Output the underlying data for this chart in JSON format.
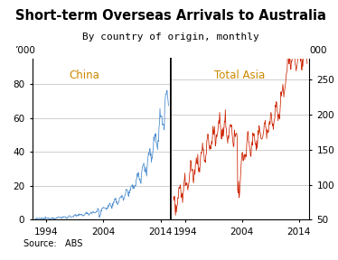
{
  "title": "Short-term Overseas Arrivals to Australia",
  "subtitle": "By country of origin, monthly",
  "source": "Source:   ABS",
  "left_label": "China",
  "right_label": "Total Asia",
  "left_ylabel": "’000",
  "right_ylabel": "’000",
  "left_ylim": [
    0,
    95
  ],
  "right_ylim": [
    50,
    280
  ],
  "left_yticks": [
    0,
    20,
    40,
    60,
    80
  ],
  "right_yticks": [
    50,
    100,
    150,
    200,
    250
  ],
  "xticks": [
    1994,
    2004,
    2014
  ],
  "xlim": [
    1991.5,
    2015.8
  ],
  "china_color": "#4488CC",
  "asia_color": "#CC2200",
  "background_color": "#FFFFFF",
  "grid_color": "#BBBBBB",
  "title_fontsize": 10.5,
  "subtitle_fontsize": 8,
  "label_fontsize": 8,
  "tick_fontsize": 7.5,
  "source_fontsize": 7
}
